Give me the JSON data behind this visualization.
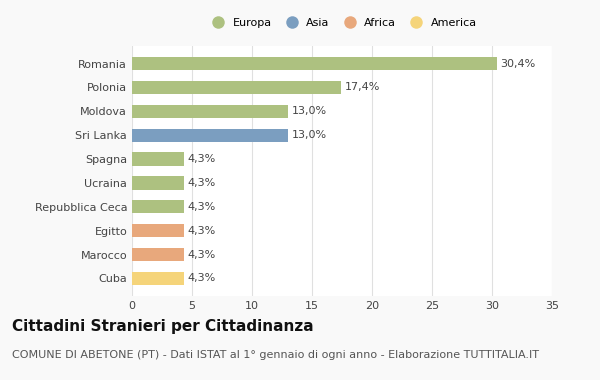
{
  "categories": [
    "Romania",
    "Polonia",
    "Moldova",
    "Sri Lanka",
    "Spagna",
    "Ucraina",
    "Repubblica Ceca",
    "Egitto",
    "Marocco",
    "Cuba"
  ],
  "values": [
    30.4,
    17.4,
    13.0,
    13.0,
    4.3,
    4.3,
    4.3,
    4.3,
    4.3,
    4.3
  ],
  "labels": [
    "30,4%",
    "17,4%",
    "13,0%",
    "13,0%",
    "4,3%",
    "4,3%",
    "4,3%",
    "4,3%",
    "4,3%",
    "4,3%"
  ],
  "colors": [
    "#adc180",
    "#adc180",
    "#adc180",
    "#7b9ec0",
    "#adc180",
    "#adc180",
    "#adc180",
    "#e8a87c",
    "#e8a87c",
    "#f5d47a"
  ],
  "legend": [
    {
      "label": "Europa",
      "color": "#adc180"
    },
    {
      "label": "Asia",
      "color": "#7b9ec0"
    },
    {
      "label": "Africa",
      "color": "#e8a87c"
    },
    {
      "label": "America",
      "color": "#f5d47a"
    }
  ],
  "xlim": [
    0,
    35
  ],
  "xticks": [
    0,
    5,
    10,
    15,
    20,
    25,
    30,
    35
  ],
  "title": "Cittadini Stranieri per Cittadinanza",
  "subtitle": "COMUNE DI ABETONE (PT) - Dati ISTAT al 1° gennaio di ogni anno - Elaborazione TUTTITALIA.IT",
  "background_color": "#f9f9f9",
  "bar_background": "#ffffff",
  "grid_color": "#e0e0e0",
  "title_fontsize": 11,
  "subtitle_fontsize": 8,
  "label_fontsize": 8,
  "tick_fontsize": 8,
  "bar_height": 0.55
}
